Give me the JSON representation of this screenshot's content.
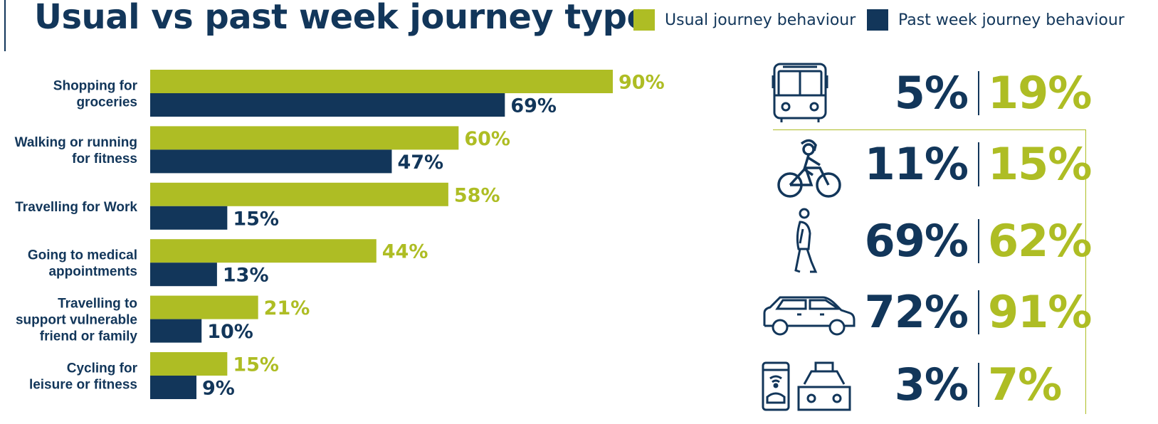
{
  "colors": {
    "usual": "#aebd24",
    "past": "#12365a"
  },
  "legend": {
    "usual": "Usual journey behaviour",
    "past": "Past week journey behaviour"
  },
  "chart_data": {
    "type": "bar",
    "orientation": "horizontal",
    "title": "Usual vs past week journey type",
    "categories": [
      [
        "Shopping for",
        "groceries"
      ],
      [
        "Walking or running",
        "for fitness"
      ],
      [
        "Travelling for Work"
      ],
      [
        "Going to medical",
        "appointments"
      ],
      [
        "Travelling to",
        "support vulnerable",
        "friend or family"
      ],
      [
        "Cycling for",
        "leisure or fitness"
      ]
    ],
    "series": [
      {
        "name": "Usual journey behaviour",
        "values": [
          90,
          60,
          58,
          44,
          21,
          15
        ]
      },
      {
        "name": "Past week journey behaviour",
        "values": [
          69,
          47,
          15,
          13,
          10,
          9
        ]
      }
    ],
    "xlim": [
      0,
      100
    ],
    "grid": false,
    "legend_position": "top-right"
  },
  "modes": [
    {
      "icon": "bus-icon",
      "past": "5%",
      "usual": "19%"
    },
    {
      "icon": "cyclist-icon",
      "past": "11%",
      "usual": "15%"
    },
    {
      "icon": "walker-icon",
      "past": "69%",
      "usual": "62%"
    },
    {
      "icon": "car-icon",
      "past": "72%",
      "usual": "91%"
    },
    {
      "icon": "phone-taxi-icon",
      "past": "3%",
      "usual": "7%"
    }
  ]
}
